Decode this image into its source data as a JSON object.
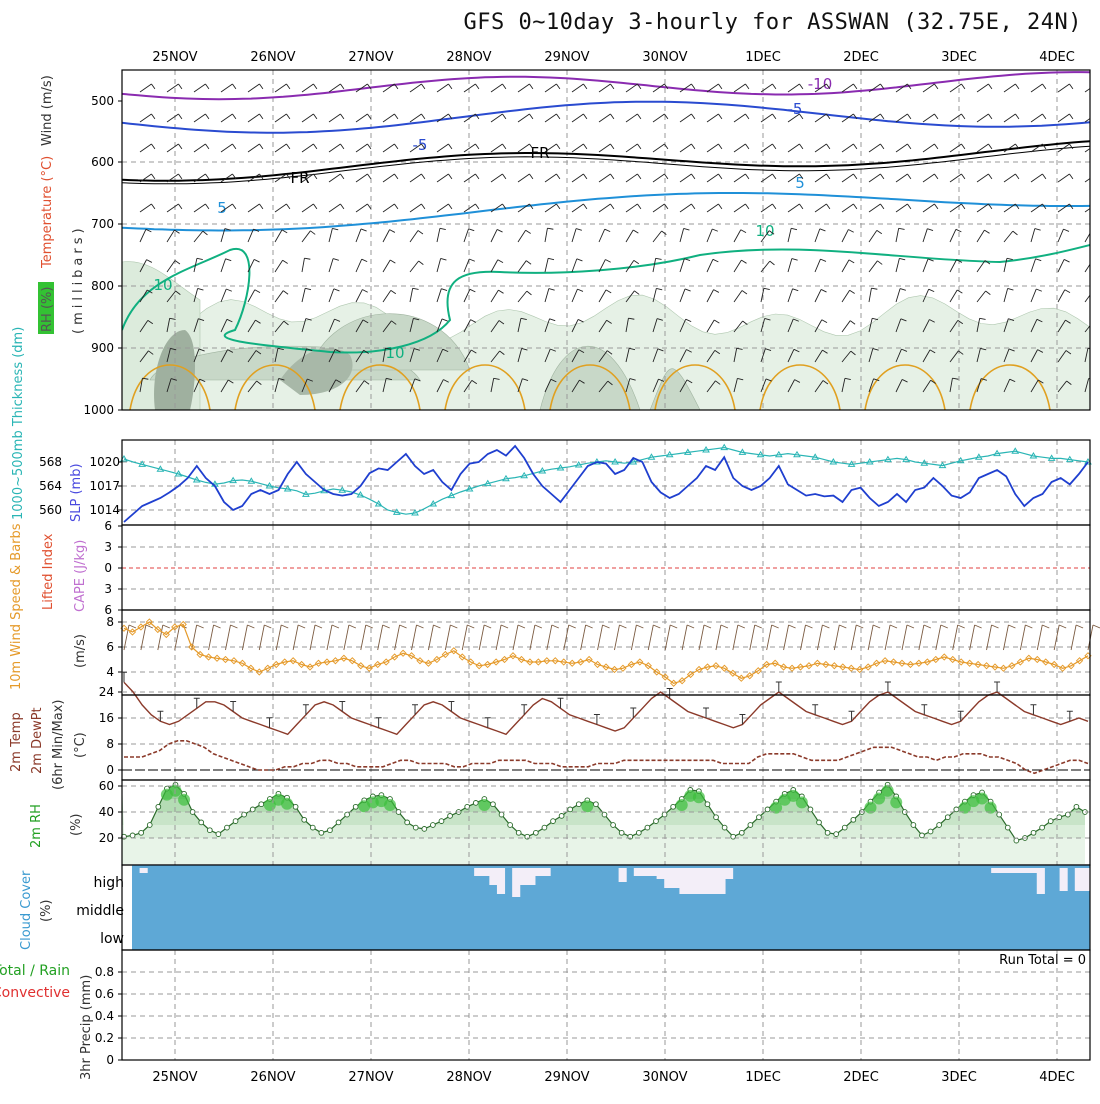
{
  "title": "GFS 0~10day 3-hourly for ASSWAN (32.75E, 24N)",
  "dates": [
    "25NOV",
    "26NOV",
    "27NOV",
    "28NOV",
    "29NOV",
    "30NOV",
    "1DEC",
    "2DEC",
    "3DEC",
    "4DEC"
  ],
  "colors": {
    "frame": "#000000",
    "grid": "#9a9a9a",
    "slp": "#1f3fcf",
    "thickness": "#2ab5b5",
    "wind_speed": "#e59a2a",
    "temp_line": "#8b3a2a",
    "rh_fill": "#2fae2f",
    "cloud": "#5ea8d6",
    "cloud_gap": "#f3eef8",
    "rh_shade": "#b9d8b9",
    "iso_minus10": "#8a2bb0",
    "iso_minus5": "#2a4bd0",
    "iso_fr": "#000000",
    "iso_5": "#1f90d8",
    "iso_10": "#10b080",
    "iso_warm": "#e0a020"
  },
  "panels": {
    "upper_air": {
      "ylabel_parts": [
        "RH (%)",
        "Temperature (°C)",
        "Wind (m/s)"
      ],
      "ylabel_units": "(millibars)",
      "levels": [
        500,
        600,
        700,
        800,
        900,
        1000
      ],
      "isotherm_labels": [
        "-10",
        "-5",
        "FR",
        "5",
        "10"
      ]
    },
    "slp_thickness": {
      "left_label": "1000~500mb Thickness (dm)",
      "right_label": "SLP (mb)",
      "thickness_ticks": [
        568,
        564,
        560
      ],
      "slp_ticks": [
        1020,
        1017,
        1014
      ]
    },
    "stability": {
      "label_li": "Lifted Index",
      "label_cape": "CAPE (J/kg)",
      "ticks": [
        "6",
        "3",
        "0",
        "3",
        "6"
      ]
    },
    "wind10m": {
      "label": "10m Wind Speed & Barbs",
      "units": "(m/s)",
      "ticks": [
        8,
        6,
        4
      ]
    },
    "temp2m": {
      "label_1": "2m Temp",
      "label_2": "2m DewPt",
      "label_3": "(6hr Min/Max)",
      "units": "(°C)",
      "ticks": [
        24,
        16,
        8,
        0
      ]
    },
    "rh2m": {
      "label": "2m RH",
      "units": "(%)",
      "ticks": [
        60,
        40,
        20
      ]
    },
    "cloud": {
      "label": "Cloud Cover",
      "units": "(%)",
      "levels": [
        "high",
        "middle",
        "low"
      ]
    },
    "precip": {
      "label_1": "Total / Rain",
      "label_2": "Convective",
      "label_3": "3hr Precip (mm)",
      "run_total": "Run Total = 0",
      "ticks": [
        "0.8",
        "0.6",
        "0.4",
        "0.2",
        "0"
      ]
    }
  },
  "chart_data": [
    {
      "type": "line",
      "title": "",
      "series": [
        {
          "name": "SLP (mb)",
          "values": [
            1012.5,
            1013.5,
            1014.5,
            1015,
            1015.5,
            1016.2,
            1017,
            1018,
            1019.5,
            1018,
            1017,
            1015,
            1014,
            1014.5,
            1016,
            1016.5,
            1016,
            1016.5,
            1018.5,
            1020,
            1018.5,
            1017.5,
            1016.5,
            1016,
            1015.8,
            1016,
            1017,
            1018.6,
            1019.2,
            1019,
            1020,
            1021,
            1019.5,
            1018.5,
            1019,
            1017.5,
            1016.5,
            1018.5,
            1019.8,
            1020,
            1021,
            1021.5,
            1020.8,
            1022,
            1020.5,
            1018.5,
            1017,
            1016,
            1015,
            1016.5,
            1018,
            1019.5,
            1020,
            1019.8,
            1018.5,
            1019,
            1020.5,
            1020,
            1017.5,
            1016.2,
            1015.5,
            1016,
            1017,
            1018,
            1019.5,
            1019,
            1020.6,
            1018,
            1017,
            1016.5,
            1017,
            1018,
            1019.5,
            1017.2,
            1016.5,
            1015.8,
            1016,
            1015.7,
            1015.8,
            1015,
            1016.5,
            1016.8,
            1015.5,
            1014.5,
            1015,
            1016,
            1015,
            1016.5,
            1016.8,
            1018,
            1017,
            1015.8,
            1015.5,
            1016.2,
            1018,
            1018.5,
            1019,
            1018.2,
            1016,
            1014.5,
            1015.5,
            1016,
            1017.5,
            1018,
            1017.2,
            1018.5,
            1020
          ]
        },
        {
          "name": "1000~500mb Thickness (dm)",
          "values": [
            568.5,
            568,
            567.6,
            567.2,
            566.8,
            566.4,
            566,
            565.5,
            565,
            564.6,
            564.3,
            564.5,
            564.9,
            565,
            564.8,
            564.4,
            564,
            563.7,
            563.5,
            563.2,
            562.6,
            562.8,
            563.2,
            563.5,
            563.3,
            563,
            562.5,
            561.8,
            561,
            560,
            559.6,
            559.3,
            559.5,
            560.2,
            561,
            561.8,
            562.4,
            563,
            563.5,
            564,
            564.4,
            564.8,
            565.2,
            565.4,
            565.7,
            566.1,
            566.5,
            566.8,
            567,
            567.2,
            567.5,
            567.8,
            568,
            568.2,
            568,
            567.8,
            568,
            568.4,
            568.8,
            569,
            569.2,
            569.4,
            569.6,
            569.8,
            570,
            570.2,
            570.4,
            570,
            569.6,
            569.4,
            569.2,
            569,
            569.2,
            569.4,
            569.2,
            569,
            568.8,
            568.4,
            568,
            567.8,
            567.6,
            567.8,
            568,
            568.2,
            568.4,
            568.6,
            568.4,
            568,
            567.8,
            567.6,
            567.4,
            567.8,
            568.2,
            568.5,
            568.8,
            569,
            569.4,
            569.6,
            569.8,
            569.4,
            569,
            568.8,
            568.6,
            568.6,
            568.4,
            568.2,
            568
          ]
        }
      ],
      "ylim": [
        1012,
        1022
      ]
    },
    {
      "type": "line",
      "title": "",
      "series": [
        {
          "name": "10m Wind Speed",
          "values": [
            7.5,
            7.2,
            7.6,
            8.0,
            7.4,
            7.0,
            7.6,
            7.8,
            6.0,
            5.4,
            5.2,
            5.1,
            5.0,
            4.9,
            4.7,
            4.3,
            4.0,
            4.3,
            4.6,
            4.8,
            4.9,
            4.6,
            4.4,
            4.7,
            4.8,
            4.9,
            5.1,
            4.9,
            4.5,
            4.3,
            4.6,
            4.8,
            5.2,
            5.5,
            5.3,
            4.9,
            4.7,
            5.0,
            5.4,
            5.7,
            5.2,
            4.8,
            4.5,
            4.6,
            4.8,
            5.0,
            5.3,
            5.0,
            4.8,
            4.8,
            4.9,
            4.9,
            4.8,
            4.7,
            4.8,
            5.0,
            4.6,
            4.4,
            4.2,
            4.3,
            4.6,
            4.8,
            4.5,
            4.0,
            3.6,
            3.1,
            3.3,
            3.8,
            4.2,
            4.4,
            4.5,
            4.3,
            3.9,
            3.5,
            3.7,
            4.1,
            4.6,
            4.7,
            4.4,
            4.3,
            4.4,
            4.5,
            4.7,
            4.6,
            4.5,
            4.4,
            4.3,
            4.2,
            4.4,
            4.7,
            4.9,
            4.8,
            4.7,
            4.6,
            4.7,
            4.8,
            5.0,
            5.2,
            5.0,
            4.8,
            4.7,
            4.6,
            4.5,
            4.4,
            4.3,
            4.5,
            4.8,
            5.1,
            5.0,
            4.8,
            4.6,
            4.3,
            4.5,
            4.9,
            5.3
          ]
        }
      ],
      "ylim": [
        3,
        9
      ]
    },
    {
      "type": "area",
      "title": "",
      "series": [
        {
          "name": "2m Temp",
          "values": [
            27,
            24,
            20,
            17,
            15,
            14,
            15,
            17,
            19,
            21,
            21,
            20,
            18,
            16,
            15,
            14,
            13,
            12,
            11,
            14,
            17,
            20,
            21,
            20,
            18,
            16,
            15,
            14,
            13,
            12,
            11,
            14,
            17,
            20,
            21,
            20,
            18,
            16,
            15,
            14,
            13,
            12,
            11,
            14,
            17,
            20,
            22,
            21,
            19,
            17,
            16,
            15,
            14,
            13,
            12,
            13,
            16,
            19,
            22,
            24,
            22,
            20,
            18,
            17,
            16,
            15,
            14,
            13,
            14,
            17,
            20,
            22,
            24,
            22,
            20,
            18,
            17,
            16,
            15,
            14,
            15,
            18,
            21,
            23,
            24,
            22,
            20,
            18,
            17,
            16,
            15,
            14,
            15,
            18,
            21,
            23,
            24,
            22,
            20,
            18,
            17,
            16,
            15,
            14,
            15,
            16,
            15
          ]
        },
        {
          "name": "2m DewPt",
          "values": [
            4,
            4,
            4,
            5,
            6,
            8,
            9,
            9,
            8,
            7,
            5,
            4,
            3,
            2,
            1,
            0,
            0,
            0,
            1,
            1,
            2,
            2,
            3,
            3,
            2,
            2,
            1,
            1,
            1,
            1,
            2,
            3,
            3,
            2,
            2,
            2,
            2,
            1,
            1,
            2,
            2,
            2,
            3,
            3,
            3,
            3,
            2,
            2,
            2,
            1,
            1,
            1,
            1,
            2,
            2,
            2,
            3,
            3,
            3,
            3,
            3,
            3,
            3,
            3,
            3,
            3,
            3,
            2,
            2,
            2,
            2,
            4,
            5,
            5,
            5,
            5,
            4,
            3,
            3,
            3,
            3,
            4,
            5,
            6,
            7,
            7,
            7,
            6,
            5,
            4,
            4,
            3,
            4,
            4,
            5,
            5,
            5,
            4,
            4,
            3,
            2,
            0,
            -1,
            0,
            1,
            2,
            3,
            3,
            2
          ]
        }
      ],
      "ylim": [
        -3,
        30
      ]
    },
    {
      "type": "area",
      "title": "",
      "series": [
        {
          "name": "2m RH",
          "values": [
            21,
            22,
            24,
            30,
            44,
            58,
            61,
            54,
            40,
            32,
            26,
            23,
            28,
            33,
            38,
            42,
            46,
            50,
            54,
            51,
            44,
            34,
            28,
            24,
            26,
            32,
            38,
            44,
            49,
            52,
            53,
            50,
            40,
            32,
            28,
            27,
            30,
            33,
            37,
            40,
            44,
            47,
            50,
            46,
            38,
            30,
            24,
            21,
            24,
            28,
            33,
            37,
            42,
            46,
            49,
            46,
            38,
            30,
            24,
            21,
            24,
            28,
            33,
            38,
            44,
            50,
            57,
            56,
            46,
            36,
            28,
            21,
            24,
            30,
            36,
            42,
            48,
            54,
            57,
            52,
            42,
            32,
            24,
            23,
            28,
            34,
            40,
            48,
            55,
            61,
            52,
            40,
            30,
            22,
            25,
            30,
            36,
            42,
            48,
            53,
            55,
            48,
            38,
            28,
            18,
            20,
            24,
            28,
            33,
            36,
            38,
            44,
            40
          ]
        }
      ],
      "ylim": [
        0,
        65
      ]
    },
    {
      "type": "bar",
      "title": "",
      "series": [
        {
          "name": "High cloud gap",
          "values": [
            0,
            5,
            0,
            0,
            0,
            0,
            0,
            0,
            0,
            0,
            0,
            0,
            0,
            0,
            0,
            0,
            0,
            0,
            0,
            0,
            0,
            0,
            0,
            0,
            0,
            0,
            0,
            0,
            0,
            0,
            0,
            0,
            0,
            0,
            0,
            0,
            0,
            0,
            0,
            0,
            0,
            0,
            0,
            0,
            0,
            10,
            10,
            25,
            40,
            0,
            45,
            25,
            25,
            10,
            10,
            0,
            0,
            0,
            0,
            0,
            0,
            0,
            0,
            0,
            20,
            0,
            10,
            10,
            10,
            15,
            30,
            30,
            40,
            40,
            40,
            40,
            40,
            40,
            15,
            0,
            0,
            0,
            0,
            0,
            0,
            0,
            0,
            0,
            0,
            0,
            0,
            0,
            0,
            0,
            0,
            0,
            0,
            0,
            0,
            0,
            0,
            0,
            0,
            0,
            0,
            0,
            0,
            0,
            0,
            0,
            0,
            0,
            0,
            5,
            5,
            5,
            5,
            5,
            5,
            40,
            0,
            0,
            35,
            0,
            35,
            35
          ]
        }
      ],
      "ylim": [
        0,
        100
      ]
    },
    {
      "type": "bar",
      "title": "",
      "series": [
        {
          "name": "3hr Precip (mm)",
          "values": []
        }
      ],
      "ylim": [
        0,
        1
      ]
    }
  ]
}
